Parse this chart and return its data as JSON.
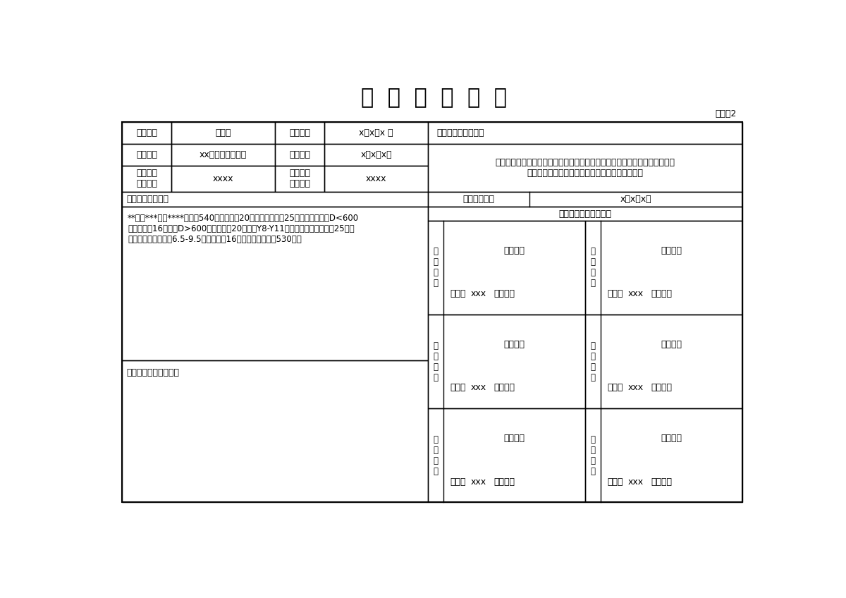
{
  "title": "竣  工  验  收  证  书",
  "subtitle": "施管表2",
  "bg_color": "#ffffff",
  "border_color": "#000000",
  "title_fontsize": 22,
  "body_fontsize": 10,
  "small_fontsize": 9,
  "row1": {
    "col1_label": "工程名称",
    "col2_val": "模板类",
    "col3_label": "开工日期",
    "col4_val": "x年x月x 日"
  },
  "row2": {
    "col1_label": "施工单位",
    "col2_val": "xx市政工程总公司",
    "col3_label": "竣工日期",
    "col4_val": "x年x月x日"
  },
  "row3": {
    "col1_label": "合同造价\n（万元）",
    "col2_val": "xxxx",
    "col3_label": "施工决算\n（万元）",
    "col4_val": "xxxx"
  },
  "quality_text": "对工程的质量评定：",
  "quality_detail": "工程已按施工合同要求完成，进验收检查，外观项目、量测项目及资料核查均\n符合有关标准的规定，全部达到合格，同意验收。",
  "acceptance_label": "验收范围及数量：",
  "acceptance_text": "**东起***西至****，全长540米，路宽：20米。污水管线（25根），雨水管线D<600\n雨水管线（16根），D>600雨水管线（20根）。Y8-Y11段采用钢筋混凝土管（25根）\n。在距路中心线以北6.5-9.5米位置新建16根电缆排管，全长530米。",
  "problems_label": "存在问题及处理意见：",
  "completion_date_label": "竣工验收日期",
  "completion_date_val": "x年x月x日",
  "participating_label": "参加竣工验收单位意见",
  "units": [
    {
      "label": "建\n设\n单\n位",
      "opinion": "同意验收",
      "sign": "签名：",
      "sign_val": "xxx",
      "seal": "（盖章）"
    },
    {
      "label": "设\n计\n单\n位",
      "opinion": "同意验收",
      "sign": "签名：",
      "sign_val": "xxx",
      "seal": "（盖章）"
    },
    {
      "label": "监\n理\n单\n位",
      "opinion": "同意验收",
      "sign": "签名：",
      "sign_val": "xxx",
      "seal": "（盖章）"
    },
    {
      "label": "施\n工\n单\n位",
      "opinion": "同意验收",
      "sign": "签名：",
      "sign_val": "xxx",
      "seal": "（盖章）"
    },
    {
      "label": "勘\n察\n单\n位",
      "opinion": "同意验收",
      "sign": "签名：",
      "sign_val": "xxx",
      "seal": "（盖章）"
    },
    {
      "label": "邀\n请\n单\n位",
      "opinion": "同意验收",
      "sign": "签名：",
      "sign_val": "xxx",
      "seal": "（盖章）"
    }
  ]
}
